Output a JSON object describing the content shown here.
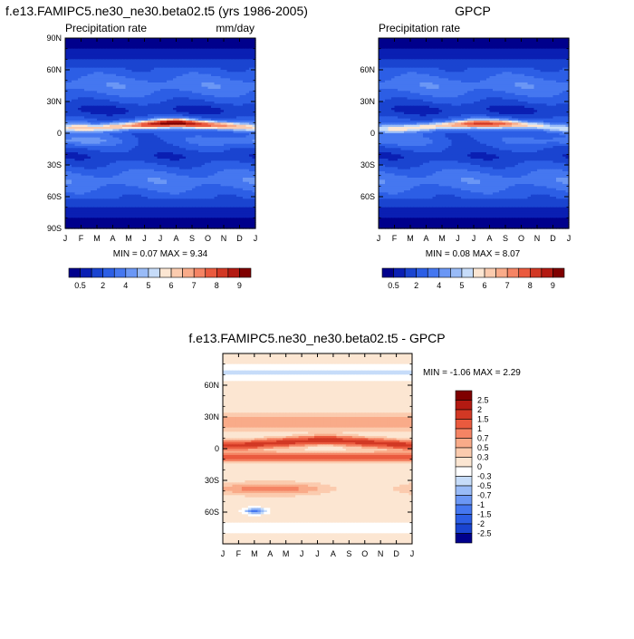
{
  "chart_data": [
    {
      "type": "heatmap",
      "title": "f.e13.FAMIPC5.ne30_ne30.beta02.t5 (yrs 1986-2005)",
      "left_label": "Precipitation rate",
      "right_label": "mm/day",
      "x_ticks": [
        "J",
        "F",
        "M",
        "A",
        "M",
        "J",
        "J",
        "A",
        "S",
        "O",
        "N",
        "D",
        "J"
      ],
      "y_ticks": [
        "90N",
        "60N",
        "30N",
        "0",
        "30S",
        "60S",
        "90S"
      ],
      "ylim": [
        -90,
        90
      ],
      "stats": "MIN =  0.07 MAX =  9.34",
      "colorbar": {
        "orientation": "horizontal",
        "labels": [
          "0.5",
          "2",
          "4",
          "5",
          "6",
          "7",
          "8",
          "9"
        ],
        "colors": [
          "#00008c",
          "#0a1fb3",
          "#1a44d0",
          "#2c5ee5",
          "#4577f0",
          "#6b97f5",
          "#99bbf7",
          "#c6dcf9",
          "#fce6d2",
          "#fbcbae",
          "#f9ab89",
          "#f58464",
          "#ea5a3e",
          "#d23824",
          "#b31a12",
          "#7f0000"
        ]
      },
      "series": [
        {
          "name": "band_30N_lat",
          "values": [
            30,
            30,
            30,
            30,
            30,
            31,
            32,
            32,
            31,
            30,
            30,
            30,
            30
          ]
        },
        {
          "name": "itcz_lat",
          "values": [
            5,
            5,
            5,
            6,
            7,
            8,
            9,
            10,
            9,
            8,
            7,
            6,
            5
          ]
        },
        {
          "name": "itcz_peak_mm_day",
          "values": [
            6,
            6,
            6,
            7,
            7.5,
            8.5,
            9,
            9.3,
            9,
            8.5,
            8,
            7,
            6
          ]
        }
      ]
    },
    {
      "type": "heatmap",
      "title": "GPCP",
      "left_label": "Precipitation rate",
      "x_ticks": [
        "J",
        "F",
        "M",
        "A",
        "M",
        "J",
        "J",
        "A",
        "S",
        "O",
        "N",
        "D",
        "J"
      ],
      "y_ticks": [
        "60N",
        "30N",
        "0",
        "30S",
        "60S"
      ],
      "ylim": [
        -90,
        90
      ],
      "stats": "MIN =  0.08 MAX =  8.07",
      "colorbar": {
        "orientation": "horizontal",
        "labels": [
          "0.5",
          "2",
          "4",
          "5",
          "6",
          "7",
          "8",
          "9"
        ],
        "colors": [
          "#00008c",
          "#0a1fb3",
          "#1a44d0",
          "#2c5ee5",
          "#4577f0",
          "#6b97f5",
          "#99bbf7",
          "#c6dcf9",
          "#fce6d2",
          "#fbcbae",
          "#f9ab89",
          "#f58464",
          "#ea5a3e",
          "#d23824",
          "#b31a12",
          "#7f0000"
        ]
      },
      "series": [
        {
          "name": "itcz_lat",
          "values": [
            4,
            4,
            5,
            6,
            7,
            8,
            9,
            9,
            9,
            8,
            7,
            5,
            4
          ]
        },
        {
          "name": "itcz_peak_mm_day",
          "values": [
            5.5,
            5.5,
            6,
            6.5,
            7,
            7.5,
            8,
            8,
            7.8,
            7,
            6.5,
            6,
            5.5
          ]
        }
      ]
    },
    {
      "type": "heatmap",
      "title": "f.e13.FAMIPC5.ne30_ne30.beta02.t5 - GPCP",
      "x_ticks": [
        "J",
        "F",
        "M",
        "A",
        "M",
        "J",
        "J",
        "A",
        "S",
        "O",
        "N",
        "D",
        "J"
      ],
      "y_ticks": [
        "60N",
        "30N",
        "0",
        "30S",
        "60S"
      ],
      "ylim": [
        -90,
        90
      ],
      "stats": "MIN = -1.06 MAX =  2.29",
      "colorbar": {
        "orientation": "vertical",
        "labels": [
          "2.5",
          "2",
          "1.5",
          "1",
          "0.7",
          "0.5",
          "0.3",
          "0",
          "-0.3",
          "-0.5",
          "-0.7",
          "-1",
          "-1.5",
          "-2",
          "-2.5"
        ],
        "colors": [
          "#7f0000",
          "#b31a12",
          "#d23824",
          "#ea5a3e",
          "#f58464",
          "#f9ab89",
          "#fbcbae",
          "#fce6d2",
          "#ffffff",
          "#c6dcf9",
          "#99bbf7",
          "#6b97f5",
          "#4577f0",
          "#2c5ee5",
          "#1a44d0",
          "#00008c"
        ]
      },
      "series": [
        {
          "name": "pos_band_lat",
          "values": [
            3,
            3,
            4,
            5,
            6,
            7,
            8,
            8,
            7,
            6,
            5,
            4,
            3
          ]
        },
        {
          "name": "neg_spot",
          "values": [
            -59,
            2.5
          ]
        }
      ]
    }
  ]
}
